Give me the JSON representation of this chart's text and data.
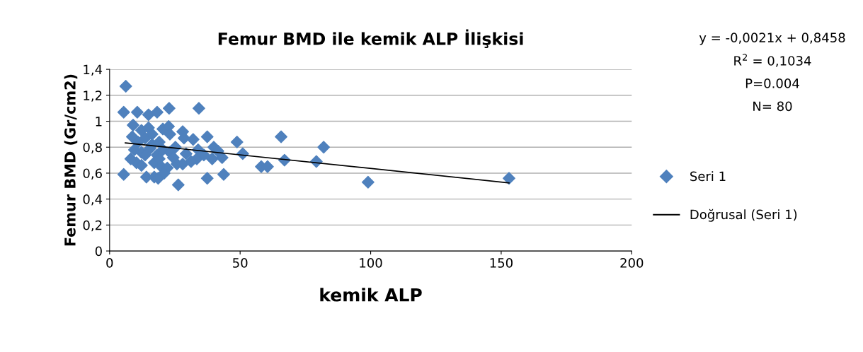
{
  "chart_data": {
    "type": "scatter",
    "title": "Femur BMD ile kemik ALP İlişkisi",
    "xlabel": "kemik ALP",
    "ylabel": "Femur BMD (Gr/cm2)",
    "annotations": [
      "y = -0,0021x + 0,8458",
      "R$^{2}$ = 0,1034",
      "P=0.004",
      "N= 80"
    ],
    "xlim": [
      0,
      200
    ],
    "xticks": [
      0,
      50,
      100,
      150,
      200
    ],
    "ylim": [
      0,
      1.4
    ],
    "yticks": [
      0,
      {
        "value": 0.2,
        "label": "0,2"
      },
      {
        "value": 0.4,
        "label": "0,4"
      },
      {
        "value": 0.6,
        "label": "0,6"
      },
      {
        "value": 0.8,
        "label": "0,8"
      },
      1,
      {
        "value": 1.2,
        "label": "1,2"
      },
      {
        "value": 1.4,
        "label": "1,4"
      }
    ],
    "grid": "y",
    "legend": "right",
    "series": [
      {
        "name": "Seri 1",
        "marker": "diamond",
        "color": "#4f81bd",
        "x": [
          6.2,
          5.4,
          5.4,
          10.6,
          14.9,
          18.2,
          22.8,
          34.2,
          9.0,
          8.7,
          12.2,
          14.9,
          20.4,
          22.6,
          28.0,
          28.5,
          23.1,
          10.9,
          13.6,
          16.3,
          19.0,
          25.2,
          32.0,
          37.4,
          48.8,
          65.7,
          82.0,
          9.5,
          12.2,
          15.5,
          18.2,
          20.4,
          23.1,
          29.3,
          33.9,
          39.9,
          41.5,
          10.3,
          12.2,
          17.1,
          19.8,
          22.1,
          25.8,
          28.0,
          33.4,
          36.1,
          39.3,
          43.1,
          51.0,
          14.1,
          17.1,
          18.6,
          26.3,
          37.4,
          43.7,
          58.1,
          60.5,
          67.0,
          79.2,
          99.0,
          153.0,
          16.3,
          13.6,
          19.0,
          24.4,
          31.2,
          20.9,
          8.1
        ],
        "values": [
          1.27,
          1.07,
          0.59,
          1.07,
          1.05,
          1.07,
          1.1,
          1.1,
          0.97,
          0.88,
          0.93,
          0.95,
          0.94,
          0.96,
          0.92,
          0.87,
          0.9,
          0.84,
          0.87,
          0.82,
          0.84,
          0.8,
          0.86,
          0.88,
          0.84,
          0.88,
          0.8,
          0.78,
          0.76,
          0.79,
          0.74,
          0.78,
          0.76,
          0.75,
          0.78,
          0.8,
          0.77,
          0.68,
          0.66,
          0.68,
          0.65,
          0.64,
          0.67,
          0.67,
          0.71,
          0.74,
          0.71,
          0.72,
          0.75,
          0.57,
          0.57,
          0.56,
          0.51,
          0.56,
          0.59,
          0.65,
          0.65,
          0.7,
          0.69,
          0.53,
          0.56,
          0.9,
          0.74,
          0.71,
          0.72,
          0.69,
          0.6,
          0.71
        ]
      },
      {
        "name": "Doğrusal (Seri 1)",
        "type": "line",
        "marker": "none",
        "line_style": "solid",
        "color": "#000000",
        "x": [
          6,
          153
        ],
        "values": [
          0.833,
          0.525
        ]
      }
    ]
  }
}
